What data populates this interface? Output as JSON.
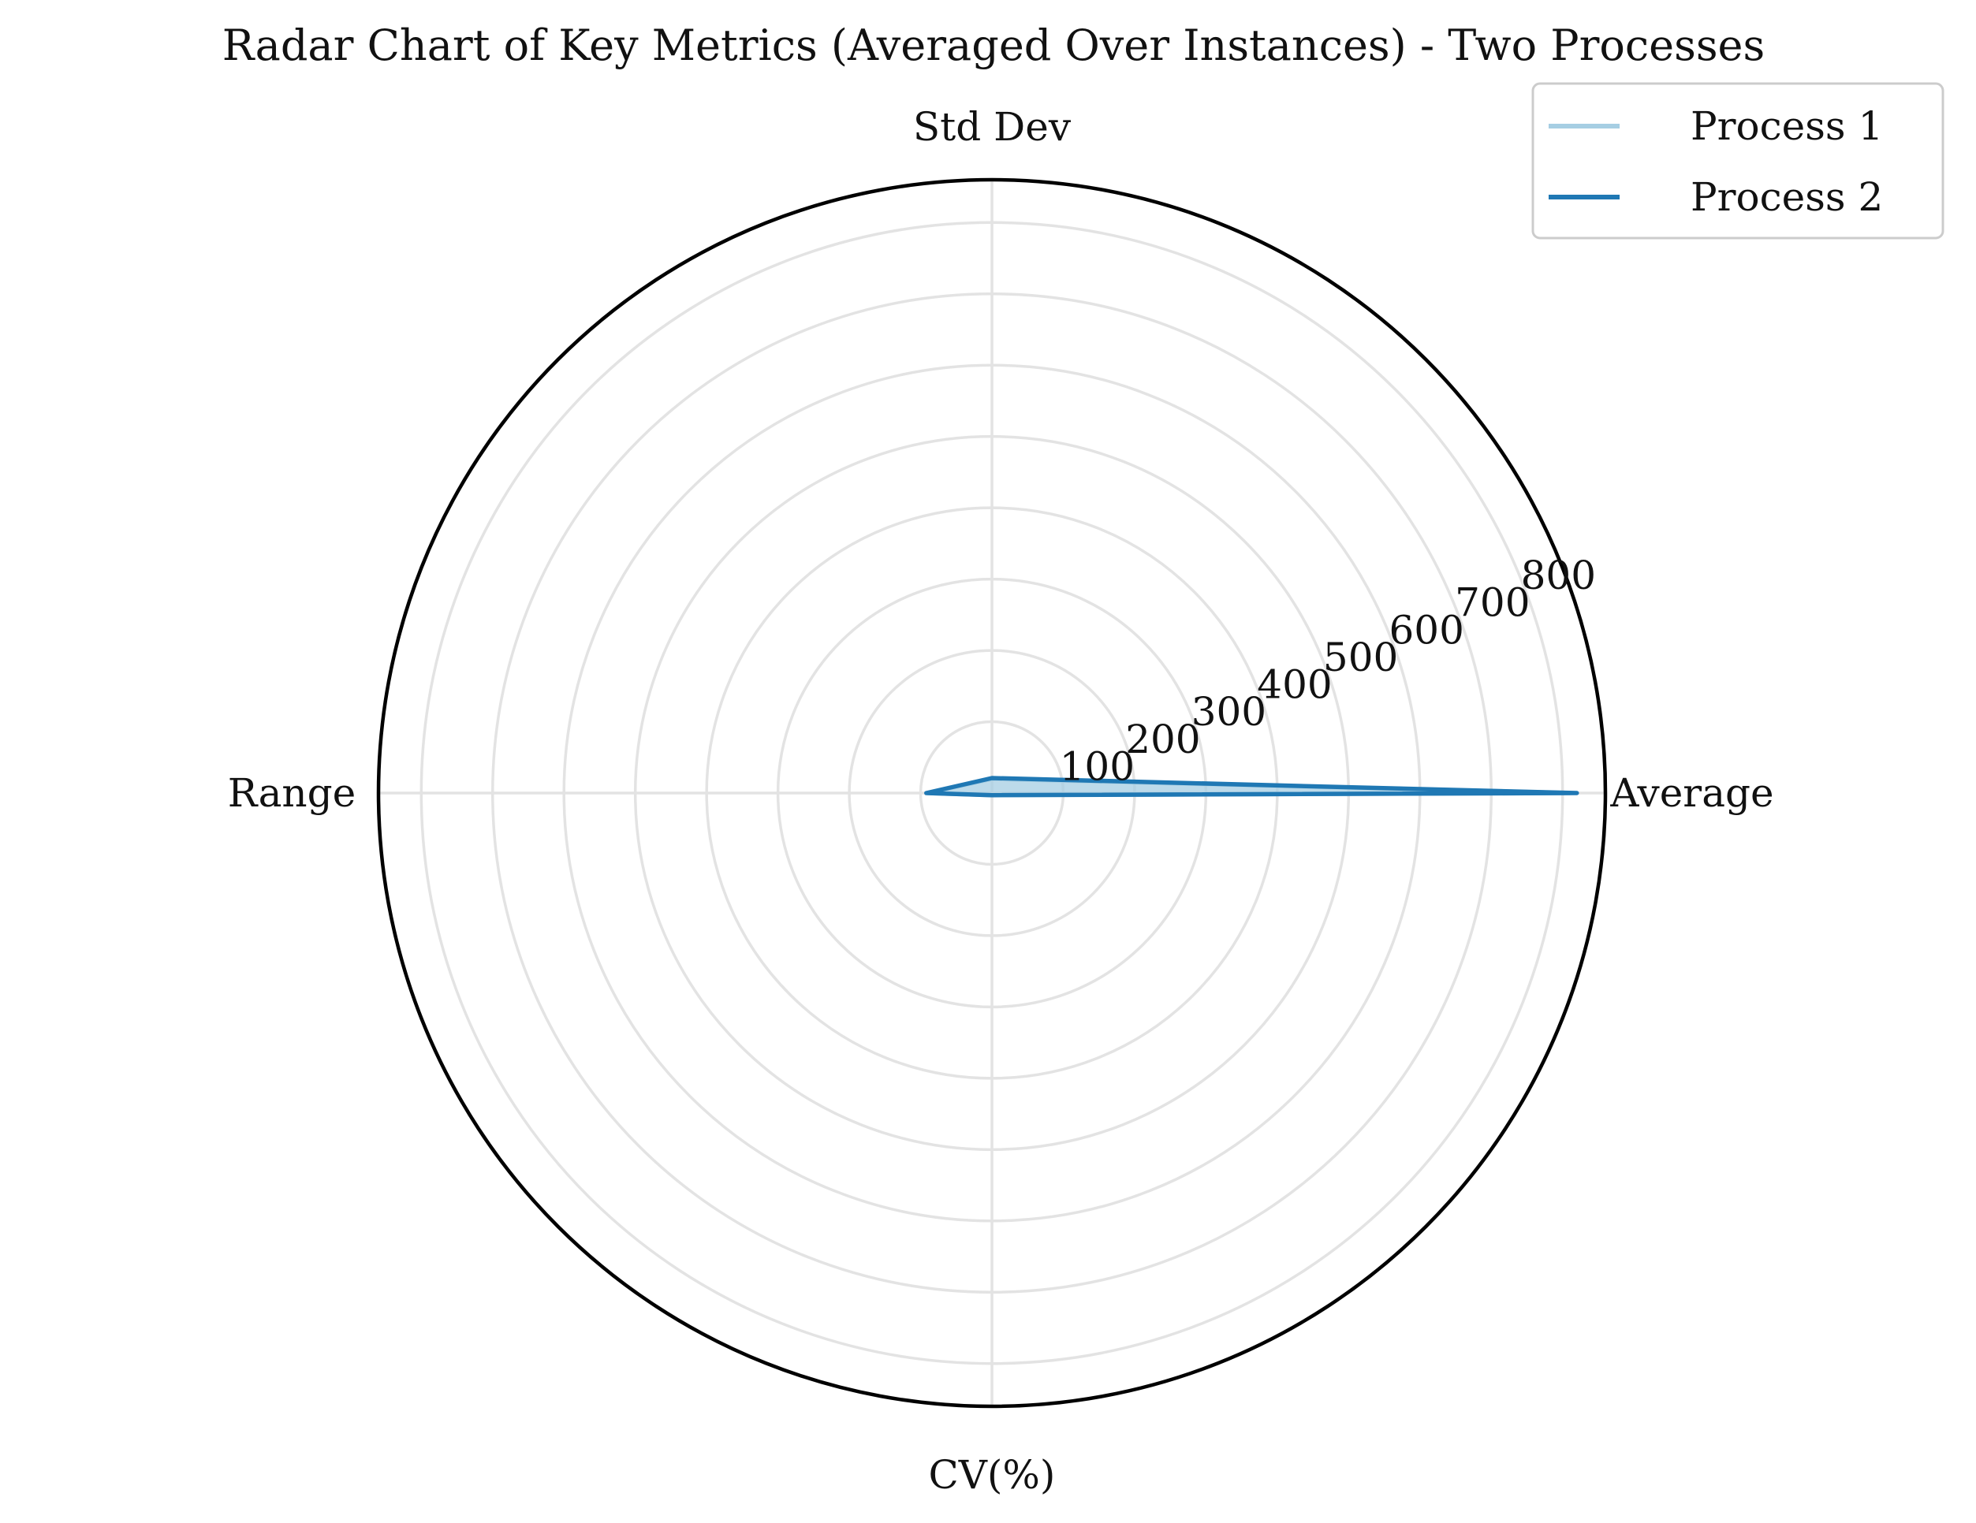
{
  "chart_data": {
    "type": "radar",
    "title": "Radar Chart of Key Metrics (Averaged Over Instances) - Two Processes",
    "categories": [
      "Average",
      "Std Dev",
      "Range",
      "CV(%)"
    ],
    "rlim": [
      0,
      860
    ],
    "rticks": [
      100,
      200,
      300,
      400,
      500,
      600,
      700,
      800
    ],
    "rtick_labels": [
      "100",
      "200",
      "300",
      "400",
      "500",
      "600",
      "700",
      "800"
    ],
    "grid": true,
    "legend_position": "top-right",
    "series": [
      {
        "name": "Process 1",
        "values": [
          810,
          20,
          90,
          3
        ],
        "color": "#a6cee3",
        "fill": true
      },
      {
        "name": "Process 2",
        "values": [
          820,
          21,
          92,
          3
        ],
        "color": "#1f78b4",
        "fill": false
      }
    ]
  }
}
